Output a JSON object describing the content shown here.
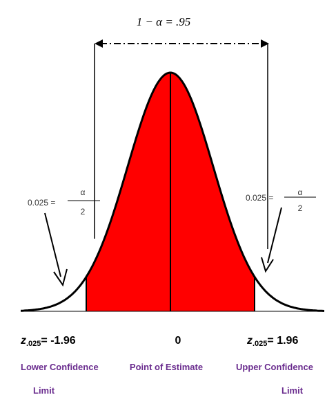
{
  "header": {
    "confidence": "1 − α = .95"
  },
  "left_tail": {
    "area": "0.025 =",
    "numerator": "α",
    "denominator": "2"
  },
  "right_tail": {
    "area": "0.025 =",
    "numerator": "α",
    "denominator": "2"
  },
  "limits": [
    {
      "symbol": "z",
      "subscript": ".025",
      "value": "= -1.96",
      "label": [
        "Lower Confidence",
        "Limit"
      ]
    },
    {
      "value": "0",
      "label": [
        "Point of Estimate"
      ]
    },
    {
      "symbol": "z",
      "subscript": ".025",
      "value": "= 1.96",
      "label": [
        "Upper Confidence",
        "Limit"
      ]
    }
  ]
}
